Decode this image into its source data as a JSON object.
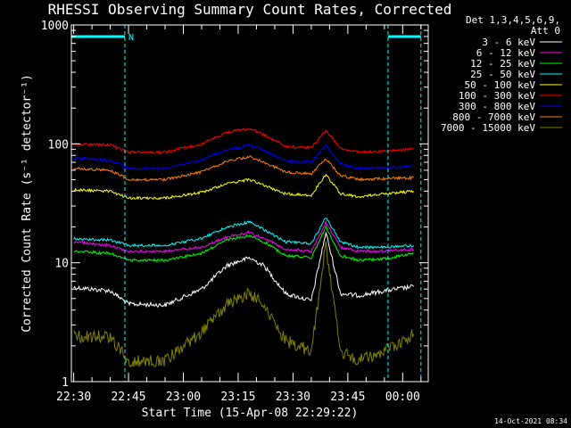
{
  "chart_data": {
    "type": "line",
    "title": "RHESSI Observing Summary Count Rates, Corrected",
    "xlabel": "Start Time (15-Apr-08 22:29:22)",
    "ylabel": "Corrected Count Rate (s⁻¹ detector⁻¹)",
    "y_scale": "log",
    "ylim": [
      1,
      1000
    ],
    "xlim": [
      "22:29:22",
      "00:07"
    ],
    "grid": false,
    "y_ticks": [
      {
        "value": 1,
        "label": "1"
      },
      {
        "value": 10,
        "label": "10"
      },
      {
        "value": 100,
        "label": "100"
      },
      {
        "value": 1000,
        "label": "1000"
      }
    ],
    "x_ticks": [
      {
        "value": "22:30",
        "label": "22:30"
      },
      {
        "value": "22:45",
        "label": "22:45"
      },
      {
        "value": "23:00",
        "label": "23:00"
      },
      {
        "value": "23:15",
        "label": "23:15"
      },
      {
        "value": "23:30",
        "label": "23:30"
      },
      {
        "value": "23:45",
        "label": "23:45"
      },
      {
        "value": "00:00",
        "label": "00:00"
      }
    ],
    "legend_header": [
      "Det 1,3,4,5,6,9,",
      "Att 0"
    ],
    "legend_position": "right",
    "series": [
      {
        "name": "3 - 6 keV",
        "color": "#ffffff",
        "x": [
          "22:30",
          "22:40",
          "22:45",
          "22:55",
          "23:05",
          "23:12",
          "23:18",
          "23:22",
          "23:28",
          "23:35",
          "23:39",
          "23:43",
          "23:48",
          "23:55",
          "00:03"
        ],
        "y": [
          6.2,
          5.8,
          4.5,
          4.4,
          6.0,
          9.5,
          11,
          9.5,
          5.5,
          4.8,
          18,
          5.5,
          5.3,
          5.8,
          6.3
        ]
      },
      {
        "name": "6 - 12 keV",
        "color": "#ff00ff",
        "x": [
          "22:30",
          "22:40",
          "22:45",
          "22:55",
          "23:05",
          "23:12",
          "23:18",
          "23:22",
          "23:28",
          "23:35",
          "23:39",
          "23:43",
          "23:48",
          "23:55",
          "00:03"
        ],
        "y": [
          15,
          14,
          12.5,
          12.5,
          13.5,
          16.5,
          18,
          16,
          13,
          12.5,
          22,
          13.5,
          12.5,
          12.5,
          13
        ]
      },
      {
        "name": "12 - 25 keV",
        "color": "#00ff00",
        "x": [
          "22:30",
          "22:40",
          "22:45",
          "22:55",
          "23:05",
          "23:12",
          "23:18",
          "23:22",
          "23:28",
          "23:35",
          "23:39",
          "23:43",
          "23:48",
          "23:55",
          "00:03"
        ],
        "y": [
          12.5,
          12,
          10.5,
          10.5,
          12,
          15.5,
          17,
          15,
          11.5,
          11,
          20,
          11.5,
          10.5,
          10.8,
          12
        ]
      },
      {
        "name": "25 - 50 keV",
        "color": "#00ffff",
        "x": [
          "22:30",
          "22:40",
          "22:45",
          "22:55",
          "23:05",
          "23:12",
          "23:18",
          "23:22",
          "23:28",
          "23:35",
          "23:39",
          "23:43",
          "23:48",
          "23:55",
          "00:03"
        ],
        "y": [
          16,
          15.5,
          14,
          14,
          16,
          20,
          22,
          19,
          15,
          14.5,
          24,
          15,
          13.5,
          13.5,
          14
        ]
      },
      {
        "name": "50 - 100 keV",
        "color": "#ffff00",
        "x": [
          "22:30",
          "22:40",
          "22:45",
          "22:55",
          "23:05",
          "23:12",
          "23:18",
          "23:22",
          "23:28",
          "23:35",
          "23:39",
          "23:43",
          "23:48",
          "23:55",
          "00:03"
        ],
        "y": [
          41,
          40,
          35,
          35,
          39,
          46,
          50,
          45,
          38,
          37,
          55,
          38,
          36,
          38,
          40
        ]
      },
      {
        "name": "100 - 300 keV",
        "color": "#ff0000",
        "x": [
          "22:30",
          "22:40",
          "22:45",
          "22:55",
          "23:05",
          "23:12",
          "23:18",
          "23:22",
          "23:28",
          "23:35",
          "23:39",
          "23:43",
          "23:48",
          "23:55",
          "00:03"
        ],
        "y": [
          100,
          98,
          85,
          85,
          100,
          125,
          135,
          120,
          95,
          93,
          130,
          92,
          85,
          87,
          90
        ]
      },
      {
        "name": "300 - 800 keV",
        "color": "#0000ff",
        "x": [
          "22:30",
          "22:40",
          "22:45",
          "22:55",
          "23:05",
          "23:12",
          "23:18",
          "23:22",
          "23:28",
          "23:35",
          "23:39",
          "23:43",
          "23:48",
          "23:55",
          "00:03"
        ],
        "y": [
          76,
          73,
          62,
          62,
          73,
          90,
          97,
          88,
          72,
          70,
          97,
          68,
          62,
          63,
          65
        ]
      },
      {
        "name": "800 - 7000 keV",
        "color": "#ff7f00",
        "x": [
          "22:30",
          "22:40",
          "22:45",
          "22:55",
          "23:05",
          "23:12",
          "23:18",
          "23:22",
          "23:28",
          "23:35",
          "23:39",
          "23:43",
          "23:48",
          "23:55",
          "00:03"
        ],
        "y": [
          62,
          60,
          50,
          50,
          58,
          72,
          78,
          70,
          58,
          56,
          75,
          54,
          50,
          51,
          52
        ]
      },
      {
        "name": "7000 - 15000 keV",
        "color": "#808000",
        "x": [
          "22:30",
          "22:40",
          "22:45",
          "22:55",
          "23:05",
          "23:12",
          "23:18",
          "23:22",
          "23:28",
          "23:35",
          "23:39",
          "23:43",
          "23:48",
          "23:55",
          "00:03"
        ],
        "y": [
          2.4,
          2.4,
          1.5,
          1.5,
          2.6,
          4.5,
          5.5,
          4.5,
          2.2,
          1.8,
          14,
          1.8,
          1.5,
          1.8,
          2.5
        ]
      }
    ],
    "annotations": [
      {
        "type": "night-bar",
        "color": "#00ffff",
        "x": [
          "22:29:22",
          "22:44"
        ],
        "label": "N"
      },
      {
        "type": "night-bar",
        "color": "#00ffff",
        "x": [
          "23:56",
          "00:05"
        ],
        "label": ""
      }
    ],
    "timestamp": "14-Oct-2021 08:34"
  }
}
